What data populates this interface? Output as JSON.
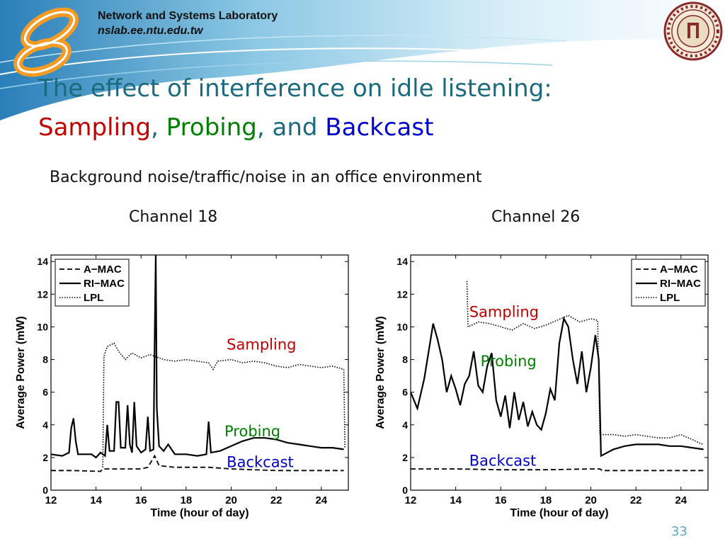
{
  "header": {
    "lab_name": "Network and Systems Laboratory",
    "lab_url": "nslab.ee.ntu.edu.tw",
    "logo_icon": "nslab-infinity-logo-icon",
    "seal_icon": "university-seal-icon"
  },
  "slide": {
    "title_line1": "The effect of interference on idle listening:",
    "title_word_sampling": "Sampling",
    "title_sep1": ",",
    "title_word_probing": "Probing",
    "title_sep2": ", and",
    "title_word_backcast": "Backcast",
    "subtitle": "Background noise/traffic/noise in an office environment",
    "page_number": "33",
    "colors": {
      "title": "#1b6b7f",
      "sampling": "#c00000",
      "probing": "#008000",
      "backcast": "#0000cc",
      "accent": "#5fa8c6"
    }
  },
  "chart_data": [
    {
      "type": "line",
      "panel_label": "Channel 18",
      "xlabel": "Time (hour of day)",
      "ylabel": "Average Power (mW)",
      "xlim": [
        12,
        25.2
      ],
      "ylim": [
        0,
        14.4
      ],
      "xticks": [
        "12",
        "14",
        "16",
        "18",
        "20",
        "22",
        "24"
      ],
      "yticks": [
        "0",
        "2",
        "4",
        "6",
        "8",
        "10",
        "12",
        "14"
      ],
      "legend_position": "top-left",
      "legend": [
        "A−MAC",
        "RI−MAC",
        "LPL"
      ],
      "annotations": [
        {
          "text": "Sampling",
          "x": 19.8,
          "y": 8.6,
          "color": "#c00000"
        },
        {
          "text": "Probing",
          "x": 19.7,
          "y": 3.3,
          "color": "#008000"
        },
        {
          "text": "Backcast",
          "x": 19.8,
          "y": 1.4,
          "color": "#0000cc"
        }
      ],
      "series": [
        {
          "name": "A−MAC",
          "style": "dashed",
          "points": [
            [
              12,
              1.2
            ],
            [
              13,
              1.2
            ],
            [
              14.2,
              1.15
            ],
            [
              14.3,
              1.3
            ],
            [
              15,
              1.3
            ],
            [
              16,
              1.3
            ],
            [
              16.3,
              1.4
            ],
            [
              16.6,
              2.1
            ],
            [
              16.8,
              1.5
            ],
            [
              17.5,
              1.4
            ],
            [
              19,
              1.4
            ],
            [
              20,
              1.3
            ],
            [
              21,
              1.25
            ],
            [
              22,
              1.2
            ],
            [
              23,
              1.2
            ],
            [
              24,
              1.2
            ],
            [
              25,
              1.2
            ]
          ]
        },
        {
          "name": "RI−MAC",
          "style": "solid",
          "points": [
            [
              12,
              2.2
            ],
            [
              12.5,
              2.1
            ],
            [
              12.8,
              2.3
            ],
            [
              12.9,
              3.8
            ],
            [
              13,
              4.4
            ],
            [
              13.1,
              3.0
            ],
            [
              13.2,
              2.2
            ],
            [
              13.8,
              2.2
            ],
            [
              14,
              2.0
            ],
            [
              14.2,
              2.3
            ],
            [
              14.4,
              2.1
            ],
            [
              14.5,
              4.0
            ],
            [
              14.6,
              2.4
            ],
            [
              14.8,
              2.4
            ],
            [
              14.9,
              5.4
            ],
            [
              15,
              5.4
            ],
            [
              15.1,
              2.6
            ],
            [
              15.3,
              2.6
            ],
            [
              15.4,
              5.2
            ],
            [
              15.5,
              2.8
            ],
            [
              15.6,
              2.3
            ],
            [
              15.7,
              5.4
            ],
            [
              15.8,
              2.7
            ],
            [
              16,
              2.3
            ],
            [
              16.2,
              2.5
            ],
            [
              16.3,
              4.5
            ],
            [
              16.4,
              2.4
            ],
            [
              16.55,
              2.5
            ],
            [
              16.6,
              9.0
            ],
            [
              16.65,
              14.4
            ],
            [
              16.7,
              5.0
            ],
            [
              16.8,
              2.7
            ],
            [
              17,
              2.4
            ],
            [
              17.2,
              2.8
            ],
            [
              17.5,
              2.2
            ],
            [
              18,
              2.2
            ],
            [
              18.5,
              2.1
            ],
            [
              18.9,
              2.2
            ],
            [
              19,
              4.2
            ],
            [
              19.1,
              2.3
            ],
            [
              19.5,
              2.4
            ],
            [
              20,
              2.7
            ],
            [
              20.5,
              3.0
            ],
            [
              21,
              3.2
            ],
            [
              21.5,
              3.2
            ],
            [
              22,
              3.1
            ],
            [
              22.5,
              2.9
            ],
            [
              23,
              2.8
            ],
            [
              23.5,
              2.7
            ],
            [
              24,
              2.6
            ],
            [
              24.5,
              2.6
            ],
            [
              25,
              2.5
            ]
          ]
        },
        {
          "name": "LPL",
          "style": "dotted",
          "points": [
            [
              14.3,
              1.4
            ],
            [
              14.35,
              8.2
            ],
            [
              14.5,
              8.8
            ],
            [
              14.8,
              9.0
            ],
            [
              15,
              8.5
            ],
            [
              15.3,
              8.0
            ],
            [
              15.6,
              8.4
            ],
            [
              16,
              8.1
            ],
            [
              16.4,
              8.3
            ],
            [
              16.6,
              8.2
            ],
            [
              17,
              8.0
            ],
            [
              17.5,
              7.9
            ],
            [
              18,
              8.0
            ],
            [
              18.5,
              7.9
            ],
            [
              19,
              7.8
            ],
            [
              19.2,
              7.4
            ],
            [
              19.4,
              7.9
            ],
            [
              20,
              8.0
            ],
            [
              20.5,
              7.8
            ],
            [
              21,
              7.9
            ],
            [
              21.5,
              7.8
            ],
            [
              22,
              7.6
            ],
            [
              22.5,
              7.5
            ],
            [
              23,
              7.7
            ],
            [
              23.5,
              7.6
            ],
            [
              24,
              7.5
            ],
            [
              24.5,
              7.6
            ],
            [
              25,
              7.4
            ],
            [
              25.05,
              2.6
            ]
          ]
        }
      ]
    },
    {
      "type": "line",
      "panel_label": "Channel 26",
      "xlabel": "Time (hour of day)",
      "ylabel": "Average Power (mW)",
      "xlim": [
        12,
        25.2
      ],
      "ylim": [
        0,
        14.4
      ],
      "xticks": [
        "12",
        "14",
        "16",
        "18",
        "20",
        "22",
        "24"
      ],
      "yticks": [
        "0",
        "2",
        "4",
        "6",
        "8",
        "10",
        "12",
        "14"
      ],
      "legend_position": "top-right",
      "legend": [
        "A−MAC",
        "RI−MAC",
        "LPL"
      ],
      "annotations": [
        {
          "text": "Sampling",
          "x": 14.6,
          "y": 10.6,
          "color": "#c00000"
        },
        {
          "text": "Probing",
          "x": 15.1,
          "y": 7.6,
          "color": "#008000"
        },
        {
          "text": "Backcast",
          "x": 14.6,
          "y": 1.5,
          "color": "#0000cc"
        }
      ],
      "series": [
        {
          "name": "A−MAC",
          "style": "dashed",
          "points": [
            [
              12,
              1.3
            ],
            [
              14,
              1.3
            ],
            [
              16,
              1.25
            ],
            [
              18,
              1.25
            ],
            [
              20,
              1.3
            ],
            [
              20.4,
              1.3
            ],
            [
              20.5,
              1.2
            ],
            [
              22,
              1.2
            ],
            [
              24,
              1.2
            ],
            [
              25,
              1.2
            ]
          ]
        },
        {
          "name": "RI−MAC",
          "style": "solid",
          "points": [
            [
              12,
              6.0
            ],
            [
              12.3,
              5.0
            ],
            [
              12.6,
              6.8
            ],
            [
              12.8,
              8.5
            ],
            [
              13,
              10.2
            ],
            [
              13.2,
              9.2
            ],
            [
              13.4,
              8.0
            ],
            [
              13.6,
              6.0
            ],
            [
              13.8,
              7.0
            ],
            [
              14,
              6.2
            ],
            [
              14.2,
              5.2
            ],
            [
              14.4,
              6.5
            ],
            [
              14.6,
              7.0
            ],
            [
              14.8,
              8.5
            ],
            [
              15,
              6.4
            ],
            [
              15.2,
              6.0
            ],
            [
              15.4,
              7.6
            ],
            [
              15.6,
              8.4
            ],
            [
              15.8,
              5.5
            ],
            [
              16,
              4.5
            ],
            [
              16.2,
              5.8
            ],
            [
              16.4,
              3.8
            ],
            [
              16.6,
              6.0
            ],
            [
              16.8,
              4.3
            ],
            [
              17,
              5.4
            ],
            [
              17.2,
              3.9
            ],
            [
              17.4,
              4.8
            ],
            [
              17.6,
              4.0
            ],
            [
              17.8,
              3.7
            ],
            [
              18,
              4.7
            ],
            [
              18.2,
              6.2
            ],
            [
              18.4,
              5.5
            ],
            [
              18.6,
              9.0
            ],
            [
              18.8,
              10.5
            ],
            [
              19,
              10.0
            ],
            [
              19.2,
              8.0
            ],
            [
              19.4,
              6.5
            ],
            [
              19.6,
              8.5
            ],
            [
              19.8,
              6.0
            ],
            [
              20,
              7.5
            ],
            [
              20.2,
              9.5
            ],
            [
              20.35,
              8.0
            ],
            [
              20.45,
              2.1
            ],
            [
              21,
              2.5
            ],
            [
              21.5,
              2.7
            ],
            [
              22,
              2.8
            ],
            [
              22.5,
              2.8
            ],
            [
              23,
              2.8
            ],
            [
              23.5,
              2.7
            ],
            [
              24,
              2.7
            ],
            [
              24.5,
              2.6
            ],
            [
              25,
              2.5
            ]
          ]
        },
        {
          "name": "LPL",
          "style": "dotted",
          "points": [
            [
              14.5,
              12.8
            ],
            [
              14.55,
              10.0
            ],
            [
              15,
              10.3
            ],
            [
              15.5,
              10.2
            ],
            [
              16,
              10.0
            ],
            [
              16.5,
              9.8
            ],
            [
              17,
              10.2
            ],
            [
              17.5,
              9.9
            ],
            [
              18,
              10.1
            ],
            [
              18.5,
              10.4
            ],
            [
              19,
              10.7
            ],
            [
              19.5,
              10.3
            ],
            [
              20,
              10.5
            ],
            [
              20.3,
              10.4
            ],
            [
              20.4,
              3.4
            ],
            [
              21,
              3.4
            ],
            [
              21.5,
              3.3
            ],
            [
              22,
              3.4
            ],
            [
              22.5,
              3.3
            ],
            [
              23,
              3.2
            ],
            [
              23.5,
              3.2
            ],
            [
              24,
              3.4
            ],
            [
              24.5,
              3.1
            ],
            [
              24.8,
              2.9
            ],
            [
              25,
              2.8
            ]
          ]
        }
      ]
    }
  ]
}
